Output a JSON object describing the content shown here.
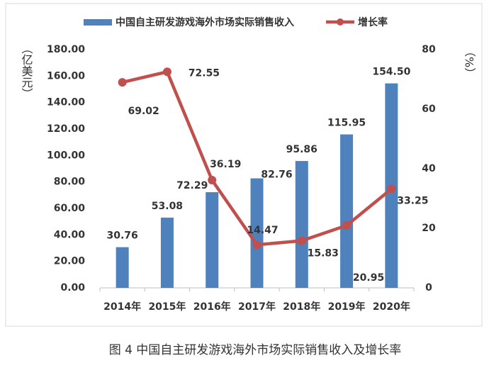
{
  "chart_data": {
    "type": "bar_line",
    "caption": "图 4  中国自主研发游戏海外市场实际销售收入及增长率",
    "y_label": "（亿美元）",
    "y2_label": "（%）",
    "categories": [
      "2014年",
      "2015年",
      "2016年",
      "2017年",
      "2018年",
      "2019年",
      "2020年"
    ],
    "series": [
      {
        "name": "中国自主研发游戏海外市场实际销售收入",
        "type": "bar",
        "color": "#4f81bd",
        "values": [
          30.76,
          53.08,
          72.29,
          82.76,
          95.86,
          115.95,
          154.5
        ],
        "value_labels": [
          "30.76",
          "53.08",
          "72.29",
          "82.76",
          "95.86",
          "115.95",
          "154.50"
        ]
      },
      {
        "name": "增长率",
        "type": "line",
        "color": "#c0504d",
        "axis": "y2",
        "values": [
          69.02,
          72.55,
          36.19,
          14.47,
          15.83,
          20.95,
          33.25
        ]
      }
    ],
    "ylim": [
      0,
      180
    ],
    "yticks": [
      {
        "value": 0,
        "label": "0.00"
      },
      {
        "value": 20,
        "label": "20.00"
      },
      {
        "value": 40,
        "label": "40.00"
      },
      {
        "value": 60,
        "label": "60.00"
      },
      {
        "value": 80,
        "label": "80.00"
      },
      {
        "value": 100,
        "label": "100.00"
      },
      {
        "value": 120,
        "label": "120.00"
      },
      {
        "value": 140,
        "label": "140.00"
      },
      {
        "value": 160,
        "label": "160.00"
      },
      {
        "value": 180,
        "label": "180.00"
      }
    ],
    "y2lim": [
      0,
      80
    ],
    "y2ticks": [
      0,
      20,
      40,
      60,
      80
    ],
    "grid": false,
    "legend": "top"
  }
}
